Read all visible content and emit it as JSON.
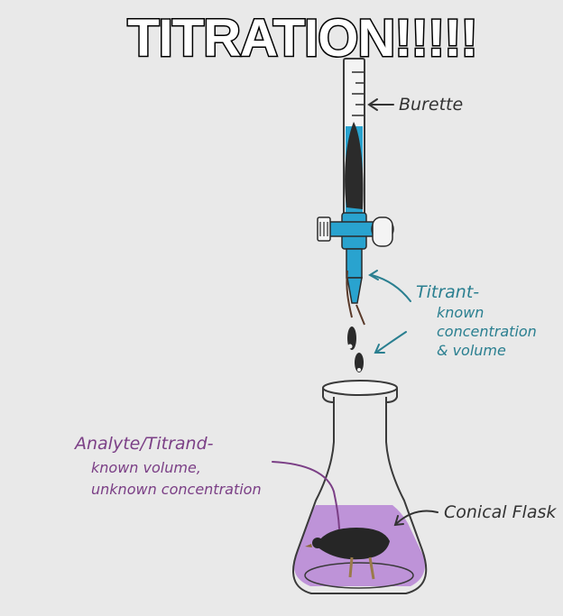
{
  "title": "TITRATION!!!!!",
  "labels": {
    "burette": "Burette",
    "titrant": {
      "heading": "Titrant-",
      "line1": "known",
      "line2": "concentration",
      "line3": "& volume"
    },
    "analyte": {
      "heading": "Analyte/Titrand-",
      "line1": "known volume,",
      "line2": "unknown concentration"
    },
    "flask": "Conical Flask"
  },
  "colors": {
    "background": "#e9e9e9",
    "burette_tap": "#29a3cf",
    "titrant_text": "#2a7f90",
    "analyte_text": "#7b3f86",
    "solution": "#b98ad6",
    "ink": "#333333"
  },
  "icons": {
    "subject": "bird-icon",
    "drops": "bird-icon"
  }
}
